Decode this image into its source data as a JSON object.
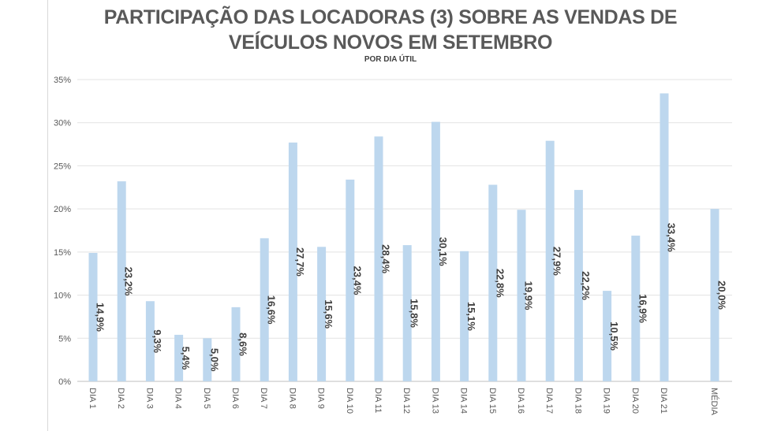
{
  "chart_data": {
    "type": "bar",
    "title_line1": "PARTICIPAÇÃO DAS LOCADORAS (3) SOBRE AS VENDAS DE",
    "title_line2": "VEÍCULOS NOVOS EM SETEMBRO",
    "subtitle": "POR DIA ÚTIL",
    "xlabel": "",
    "ylabel": "",
    "ylim": [
      0,
      35
    ],
    "yticks": [
      "0%",
      "5%",
      "10%",
      "15%",
      "20%",
      "25%",
      "30%",
      "35%"
    ],
    "grid": true,
    "legend": "none",
    "categories": [
      "DIA 1",
      "DIA 2",
      "DIA 3",
      "DIA 4",
      "DIA 5",
      "DIA 6",
      "DIA 7",
      "DIA 8",
      "DIA 9",
      "DIA 10",
      "DIA 11",
      "DIA 12",
      "DIA 13",
      "DIA 14",
      "DIA 15",
      "DIA 16",
      "DIA 17",
      "DIA 18",
      "DIA 19",
      "DIA 20",
      "DIA 21",
      "MÉDIA"
    ],
    "values": [
      14.9,
      23.2,
      9.3,
      5.4,
      5.0,
      8.6,
      16.6,
      27.7,
      15.6,
      23.4,
      28.4,
      15.8,
      30.1,
      15.1,
      22.8,
      19.9,
      27.9,
      22.2,
      10.5,
      16.9,
      33.4,
      20.0
    ],
    "labels": [
      "14,9%",
      "23,2%",
      "9,3%",
      "5,4%",
      "5,0%",
      "8,6%",
      "16,6%",
      "27,7%",
      "15,6%",
      "23,4%",
      "28,4%",
      "15,8%",
      "30,1%",
      "15,1%",
      "22,8%",
      "19,9%",
      "27,9%",
      "22,2%",
      "10,5%",
      "16,9%",
      "33,4%",
      "20,0%"
    ],
    "bar_color": "#bdd7ee"
  }
}
